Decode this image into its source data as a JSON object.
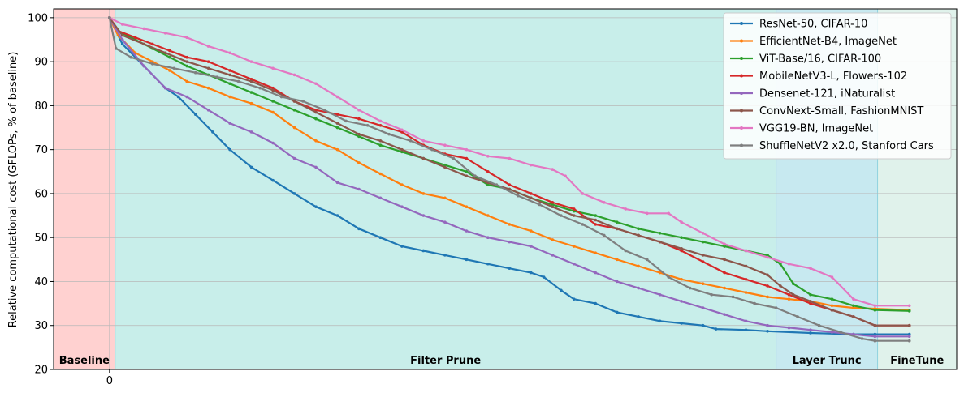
{
  "chart_data": {
    "type": "line",
    "ylabel": "Relative computational cost (GFLOPs, % of baseline)",
    "xlabel": "",
    "title": "",
    "x_ticks": [
      {
        "x": 0,
        "label": "0"
      }
    ],
    "xlim": [
      -13,
      197
    ],
    "ylim": [
      20,
      102
    ],
    "y_ticks": [
      20,
      30,
      40,
      50,
      60,
      70,
      80,
      90,
      100
    ],
    "grid": "horizontal",
    "legend_position": "top-right",
    "phases": [
      {
        "label": "Baseline",
        "start": -13,
        "end": 1.3,
        "color": "#ffd1d0"
      },
      {
        "label": "Filter Prune",
        "start": 1.3,
        "end": 155,
        "color": "#c8eeea"
      },
      {
        "label": "Layer Trunc",
        "start": 155,
        "end": 178.6,
        "color": "#c7e9f0"
      },
      {
        "label": "FineTune",
        "start": 178.6,
        "end": 197,
        "color": "#e0f2eb"
      }
    ],
    "series": [
      {
        "name": "ResNet-50, CIFAR-10",
        "color": "#1f77b4",
        "points": [
          [
            0,
            100
          ],
          [
            3,
            94
          ],
          [
            8,
            89
          ],
          [
            13,
            84
          ],
          [
            16,
            82
          ],
          [
            20,
            78
          ],
          [
            24,
            74
          ],
          [
            28,
            70
          ],
          [
            33,
            66
          ],
          [
            38,
            63
          ],
          [
            43,
            60
          ],
          [
            48,
            57
          ],
          [
            53,
            55
          ],
          [
            58,
            52
          ],
          [
            63,
            50
          ],
          [
            68,
            48
          ],
          [
            73,
            47
          ],
          [
            78,
            46
          ],
          [
            83,
            45
          ],
          [
            88,
            44
          ],
          [
            93,
            43
          ],
          [
            98,
            42
          ],
          [
            101,
            41
          ],
          [
            105,
            38
          ],
          [
            108,
            36
          ],
          [
            113,
            35
          ],
          [
            118,
            33
          ],
          [
            123,
            32
          ],
          [
            128,
            31
          ],
          [
            133,
            30.5
          ],
          [
            138,
            30
          ],
          [
            141,
            29.2
          ],
          [
            148,
            29
          ],
          [
            153,
            28.7
          ],
          [
            163,
            28.3
          ],
          [
            173,
            28
          ],
          [
            178,
            28
          ],
          [
            186,
            28
          ]
        ]
      },
      {
        "name": "EfficientNet-B4, ImageNet",
        "color": "#ff7f0e",
        "points": [
          [
            0,
            100
          ],
          [
            2,
            96
          ],
          [
            6,
            92
          ],
          [
            10,
            90
          ],
          [
            14,
            88
          ],
          [
            18,
            85.5
          ],
          [
            23,
            84
          ],
          [
            28,
            82
          ],
          [
            33,
            80.5
          ],
          [
            38,
            78.5
          ],
          [
            43,
            75
          ],
          [
            48,
            72
          ],
          [
            53,
            70
          ],
          [
            58,
            67
          ],
          [
            63,
            64.5
          ],
          [
            68,
            62
          ],
          [
            73,
            60
          ],
          [
            78,
            59
          ],
          [
            83,
            57
          ],
          [
            88,
            55
          ],
          [
            93,
            53
          ],
          [
            98,
            51.5
          ],
          [
            103,
            49.5
          ],
          [
            108,
            48
          ],
          [
            113,
            46.5
          ],
          [
            118,
            45
          ],
          [
            123,
            43.5
          ],
          [
            128,
            42
          ],
          [
            133,
            40.5
          ],
          [
            138,
            39.5
          ],
          [
            143,
            38.5
          ],
          [
            148,
            37.5
          ],
          [
            153,
            36.5
          ],
          [
            158,
            36
          ],
          [
            163,
            35.5
          ],
          [
            168,
            34.5
          ],
          [
            173,
            34
          ],
          [
            178,
            33.8
          ],
          [
            186,
            33.5
          ]
        ]
      },
      {
        "name": "ViT-Base/16, CIFAR-100",
        "color": "#2ca02c",
        "points": [
          [
            0,
            100
          ],
          [
            2,
            97
          ],
          [
            6,
            95
          ],
          [
            10,
            93
          ],
          [
            14,
            91
          ],
          [
            18,
            89
          ],
          [
            23,
            87
          ],
          [
            28,
            85
          ],
          [
            33,
            83
          ],
          [
            38,
            81
          ],
          [
            43,
            79
          ],
          [
            48,
            77
          ],
          [
            53,
            75
          ],
          [
            58,
            73
          ],
          [
            63,
            71
          ],
          [
            68,
            69.5
          ],
          [
            73,
            68
          ],
          [
            78,
            66.5
          ],
          [
            83,
            65
          ],
          [
            88,
            62
          ],
          [
            93,
            61
          ],
          [
            98,
            59
          ],
          [
            103,
            57.5
          ],
          [
            108,
            56
          ],
          [
            113,
            55
          ],
          [
            118,
            53.5
          ],
          [
            123,
            52
          ],
          [
            128,
            51
          ],
          [
            133,
            50
          ],
          [
            138,
            49
          ],
          [
            143,
            48
          ],
          [
            148,
            47
          ],
          [
            153,
            46
          ],
          [
            156,
            44
          ],
          [
            159,
            39.5
          ],
          [
            163,
            37
          ],
          [
            168,
            36
          ],
          [
            173,
            34.5
          ],
          [
            178,
            33.5
          ],
          [
            186,
            33.3
          ]
        ]
      },
      {
        "name": "MobileNetV3-L, Flowers-102",
        "color": "#d62728",
        "points": [
          [
            0,
            100
          ],
          [
            2,
            97
          ],
          [
            6,
            95.5
          ],
          [
            10,
            94
          ],
          [
            14,
            92.5
          ],
          [
            18,
            91
          ],
          [
            23,
            90
          ],
          [
            28,
            88
          ],
          [
            33,
            86
          ],
          [
            38,
            84
          ],
          [
            43,
            81
          ],
          [
            48,
            79
          ],
          [
            53,
            78
          ],
          [
            58,
            77
          ],
          [
            63,
            75.5
          ],
          [
            68,
            74
          ],
          [
            73,
            71
          ],
          [
            78,
            69
          ],
          [
            83,
            68
          ],
          [
            88,
            65
          ],
          [
            93,
            62
          ],
          [
            98,
            60
          ],
          [
            103,
            58
          ],
          [
            108,
            56.5
          ],
          [
            113,
            53
          ],
          [
            118,
            52
          ],
          [
            123,
            50.5
          ],
          [
            128,
            49
          ],
          [
            133,
            47
          ],
          [
            138,
            44.5
          ],
          [
            143,
            42
          ],
          [
            148,
            40.5
          ],
          [
            153,
            39
          ],
          [
            158,
            37
          ],
          [
            163,
            35
          ],
          [
            168,
            33.5
          ],
          [
            173,
            32
          ],
          [
            178,
            30
          ],
          [
            186,
            30
          ]
        ]
      },
      {
        "name": "Densenet-121, iNaturalist",
        "color": "#9467bd",
        "points": [
          [
            0,
            100
          ],
          [
            3,
            95
          ],
          [
            8,
            89
          ],
          [
            13,
            84
          ],
          [
            18,
            82
          ],
          [
            23,
            79
          ],
          [
            28,
            76
          ],
          [
            33,
            74
          ],
          [
            38,
            71.5
          ],
          [
            43,
            68
          ],
          [
            48,
            66
          ],
          [
            53,
            62.5
          ],
          [
            58,
            61
          ],
          [
            63,
            59
          ],
          [
            68,
            57
          ],
          [
            73,
            55
          ],
          [
            78,
            53.5
          ],
          [
            83,
            51.5
          ],
          [
            88,
            50
          ],
          [
            93,
            49
          ],
          [
            98,
            48
          ],
          [
            103,
            46
          ],
          [
            108,
            44
          ],
          [
            113,
            42
          ],
          [
            118,
            40
          ],
          [
            123,
            38.5
          ],
          [
            128,
            37
          ],
          [
            133,
            35.5
          ],
          [
            138,
            34
          ],
          [
            143,
            32.5
          ],
          [
            148,
            31
          ],
          [
            153,
            30
          ],
          [
            158,
            29.5
          ],
          [
            163,
            29
          ],
          [
            168,
            28.5
          ],
          [
            173,
            28
          ],
          [
            178,
            27.5
          ],
          [
            186,
            27.5
          ]
        ]
      },
      {
        "name": "ConvNext-Small, FashionMNIST",
        "color": "#8c564b",
        "points": [
          [
            0,
            100
          ],
          [
            3,
            96
          ],
          [
            8,
            94
          ],
          [
            13,
            92
          ],
          [
            18,
            90
          ],
          [
            23,
            88.5
          ],
          [
            28,
            87
          ],
          [
            33,
            85.5
          ],
          [
            38,
            83.5
          ],
          [
            43,
            81
          ],
          [
            48,
            78.5
          ],
          [
            53,
            76
          ],
          [
            58,
            73.5
          ],
          [
            63,
            72
          ],
          [
            68,
            70
          ],
          [
            73,
            68
          ],
          [
            78,
            66
          ],
          [
            83,
            64
          ],
          [
            88,
            62.5
          ],
          [
            93,
            61
          ],
          [
            98,
            59
          ],
          [
            103,
            57
          ],
          [
            108,
            55
          ],
          [
            113,
            54
          ],
          [
            118,
            52
          ],
          [
            123,
            50.5
          ],
          [
            128,
            49
          ],
          [
            133,
            47.5
          ],
          [
            138,
            46
          ],
          [
            143,
            45
          ],
          [
            148,
            43.5
          ],
          [
            153,
            41.5
          ],
          [
            156,
            39
          ],
          [
            159,
            37
          ],
          [
            163,
            35.5
          ],
          [
            168,
            33.5
          ],
          [
            173,
            32
          ],
          [
            178,
            30
          ],
          [
            186,
            30
          ]
        ]
      },
      {
        "name": "VGG19-BN, ImageNet",
        "color": "#e377c2",
        "points": [
          [
            0,
            100
          ],
          [
            3,
            98.5
          ],
          [
            8,
            97.5
          ],
          [
            13,
            96.5
          ],
          [
            18,
            95.5
          ],
          [
            23,
            93.5
          ],
          [
            28,
            92
          ],
          [
            33,
            90
          ],
          [
            38,
            88.5
          ],
          [
            43,
            87
          ],
          [
            48,
            85
          ],
          [
            53,
            82
          ],
          [
            58,
            79
          ],
          [
            63,
            76.5
          ],
          [
            68,
            74.5
          ],
          [
            73,
            72
          ],
          [
            78,
            71
          ],
          [
            83,
            70
          ],
          [
            88,
            68.5
          ],
          [
            93,
            68
          ],
          [
            98,
            66.5
          ],
          [
            103,
            65.5
          ],
          [
            106,
            64
          ],
          [
            110,
            60
          ],
          [
            115,
            58
          ],
          [
            120,
            56.5
          ],
          [
            125,
            55.5
          ],
          [
            130,
            55.5
          ],
          [
            133,
            53.5
          ],
          [
            138,
            51
          ],
          [
            143,
            48.5
          ],
          [
            148,
            47
          ],
          [
            153,
            45.5
          ],
          [
            158,
            44
          ],
          [
            163,
            43
          ],
          [
            168,
            41
          ],
          [
            173,
            36
          ],
          [
            178,
            34.5
          ],
          [
            186,
            34.5
          ]
        ]
      },
      {
        "name": "ShuffleNetV2 x2.0, Stanford Cars",
        "color": "#7f7f7f",
        "points": [
          [
            0,
            100
          ],
          [
            1.5,
            93
          ],
          [
            5,
            91
          ],
          [
            10,
            89.5
          ],
          [
            15,
            88.5
          ],
          [
            20,
            87.5
          ],
          [
            25,
            86.5
          ],
          [
            30,
            85.5
          ],
          [
            35,
            84
          ],
          [
            40,
            82
          ],
          [
            45,
            81
          ],
          [
            50,
            79
          ],
          [
            55,
            76.5
          ],
          [
            60,
            75.5
          ],
          [
            65,
            73.5
          ],
          [
            70,
            72
          ],
          [
            75,
            70
          ],
          [
            80,
            68
          ],
          [
            85,
            64
          ],
          [
            90,
            62
          ],
          [
            95,
            59.5
          ],
          [
            100,
            57.5
          ],
          [
            105,
            55
          ],
          [
            110,
            53
          ],
          [
            115,
            50.5
          ],
          [
            120,
            47
          ],
          [
            125,
            45
          ],
          [
            130,
            41
          ],
          [
            135,
            38.5
          ],
          [
            140,
            37
          ],
          [
            145,
            36.5
          ],
          [
            150,
            35
          ],
          [
            155,
            34
          ],
          [
            160,
            32
          ],
          [
            165,
            30
          ],
          [
            170,
            28.5
          ],
          [
            175,
            27
          ],
          [
            178,
            26.5
          ],
          [
            186,
            26.5
          ]
        ]
      }
    ]
  }
}
